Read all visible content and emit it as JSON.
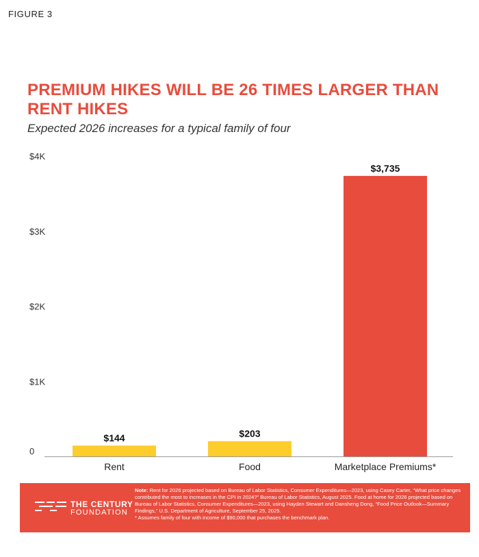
{
  "figure_label": "FIGURE 3",
  "chart_data": {
    "type": "bar",
    "title": "PREMIUM HIKES WILL BE 26 TIMES LARGER THAN RENT HIKES",
    "subtitle": "Expected 2026 increases for a typical family of four",
    "categories": [
      "Rent",
      "Food",
      "Marketplace Premiums*"
    ],
    "values": [
      144,
      203,
      3735
    ],
    "value_labels": [
      "$144",
      "$203",
      "$3,735"
    ],
    "bar_colors": [
      "#fdcd2c",
      "#fdcd2c",
      "#e84c3d"
    ],
    "ylim": [
      0,
      4000
    ],
    "yticks": [
      0,
      1000,
      2000,
      3000,
      4000
    ],
    "ytick_labels": [
      "0",
      "$1K",
      "$2K",
      "$3K",
      "$4K"
    ],
    "xlabel": "",
    "ylabel": "",
    "grid": false
  },
  "footer": {
    "logo_name": "THE CENTURY",
    "logo_sub": "FOUNDATION",
    "note_label": "Note:",
    "note_text": "Rent for 2026 projected based on Bureau of Labor Statistics, Consumer Expenditures—2023, using Casey Carter, “What price changes contributed the most to increases in the CPI in 2024?” Bureau of Labor Statistics, August 2025. Food at home for 2026 projected based on Bureau of Labor Statistics, Consumer Expenditures—2023, using Hayden Stewart and Dansheng Dong, “Food Price Outlook—Summary Findings,” U.S. Department of Agriculture, September 25, 2025.",
    "asterisk_note": "* Assumes family of four with income of $90,000 that purchases the benchmark plan."
  },
  "colors": {
    "accent": "#e84c3d",
    "bar_yellow": "#fdcd2c",
    "axis": "#9a9a9a"
  }
}
